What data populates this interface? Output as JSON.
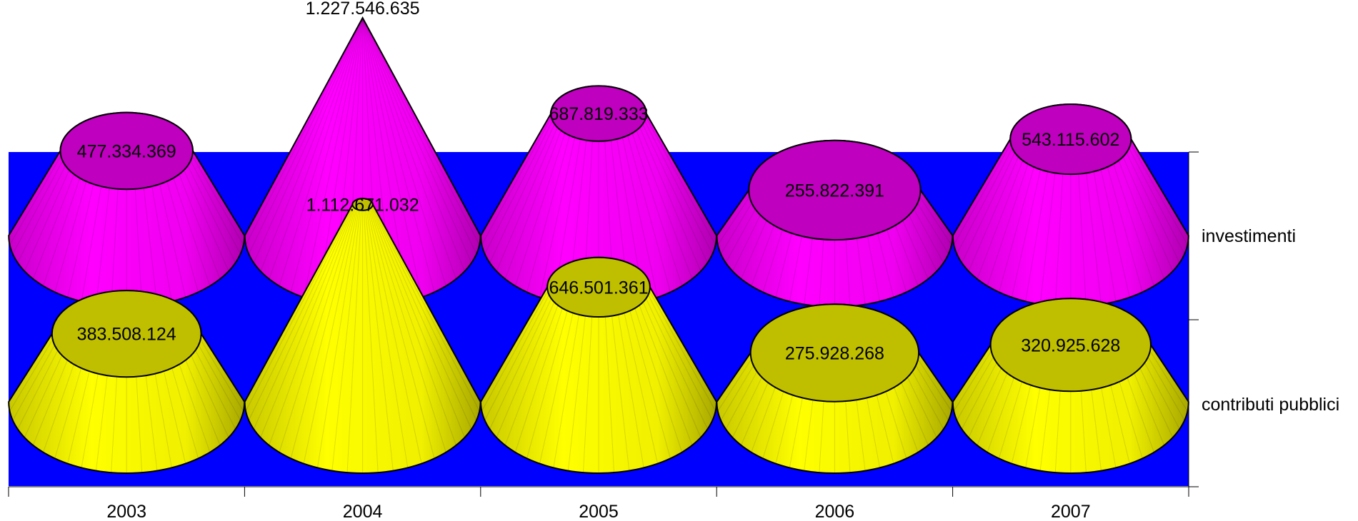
{
  "chart_data": {
    "type": "bar",
    "style": "3d-cone",
    "categories": [
      "2003",
      "2004",
      "2005",
      "2006",
      "2007"
    ],
    "series": [
      {
        "name": "investimenti",
        "values": [
          477334369,
          1227546635,
          687819333,
          255822391,
          543115602
        ],
        "labels": [
          "477.334.369",
          "1.227.546.635",
          "687.819.333",
          "255.822.391",
          "543.115.602"
        ],
        "color": "#ff00ff",
        "top_color": "#bf00bf"
      },
      {
        "name": "contributi pubblici",
        "values": [
          383508124,
          1112671032,
          646501361,
          275928268,
          320925628
        ],
        "labels": [
          "383.508.124",
          "1.112.671.032",
          "646.501.361",
          "275.928.268",
          "320.925.628"
        ],
        "color": "#ffff00",
        "top_color": "#bfbf00"
      }
    ],
    "wall_color": "#0000ff",
    "legend": "series labels at right",
    "grid": false
  }
}
